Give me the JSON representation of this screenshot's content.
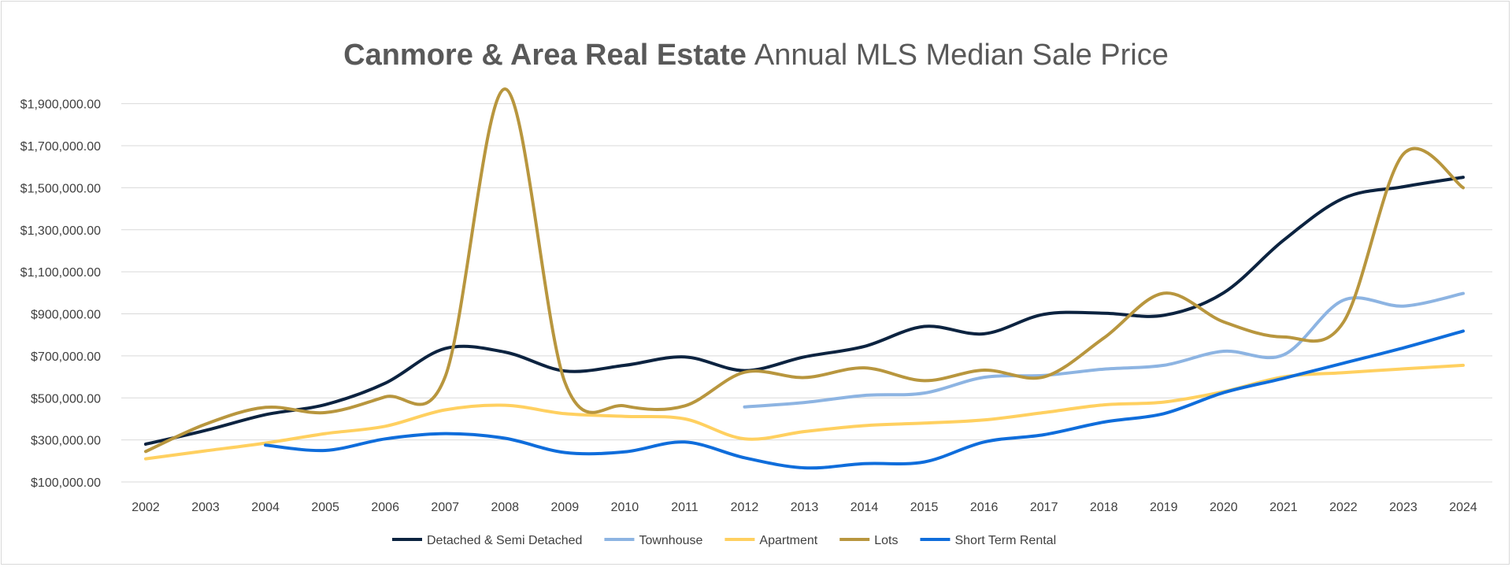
{
  "chart_data": {
    "type": "line",
    "title_bold": "Canmore & Area Real Estate",
    "title_rest": "Annual MLS Median Sale Price",
    "xlabel": "",
    "ylabel": "",
    "ylim": [
      100000,
      2000000
    ],
    "y_ticks": [
      100000,
      300000,
      500000,
      700000,
      900000,
      1100000,
      1300000,
      1500000,
      1700000,
      1900000
    ],
    "y_tick_labels": [
      "$100,000.00",
      "$300,000.00",
      "$500,000.00",
      "$700,000.00",
      "$900,000.00",
      "$1,100,000.00",
      "$1,300,000.00",
      "$1,500,000.00",
      "$1,700,000.00",
      "$1,900,000.00"
    ],
    "grid": true,
    "legend_position": "bottom",
    "x": [
      "2002",
      "2003",
      "2004",
      "2005",
      "2006",
      "2007",
      "2008",
      "2009",
      "2010",
      "2011",
      "2012",
      "2013",
      "2014",
      "2015",
      "2016",
      "2017",
      "2018",
      "2019",
      "2020",
      "2021",
      "2022",
      "2023",
      "2024"
    ],
    "series": [
      {
        "name": "Detached & Semi Detached",
        "color": "#0c2340",
        "values": [
          280000,
          345000,
          420000,
          468000,
          570000,
          735000,
          718000,
          628000,
          655000,
          695000,
          630000,
          695000,
          745000,
          840000,
          805000,
          898000,
          903000,
          893000,
          1000000,
          1250000,
          1450000,
          1505000,
          1550000
        ]
      },
      {
        "name": "Townhouse",
        "color": "#8db4e2",
        "values": [
          null,
          null,
          null,
          null,
          null,
          null,
          null,
          null,
          null,
          null,
          457000,
          478000,
          512000,
          523000,
          598000,
          607000,
          637000,
          655000,
          722000,
          705000,
          965000,
          937000,
          997000
        ]
      },
      {
        "name": "Apartment",
        "color": "#ffd060",
        "values": [
          210000,
          248000,
          285000,
          330000,
          365000,
          443000,
          465000,
          425000,
          412000,
          400000,
          305000,
          340000,
          368000,
          380000,
          395000,
          430000,
          467000,
          480000,
          530000,
          600000,
          620000,
          638000,
          655000
        ]
      },
      {
        "name": "Lots",
        "color": "#b8963e",
        "values": [
          245000,
          375000,
          455000,
          430000,
          505000,
          600000,
          1970000,
          575000,
          462000,
          462000,
          622000,
          597000,
          643000,
          582000,
          632000,
          600000,
          785000,
          998000,
          862000,
          790000,
          860000,
          1660000,
          1500000
        ]
      },
      {
        "name": "Short Term Rental",
        "color": "#0f6ddb",
        "values": [
          null,
          null,
          275000,
          250000,
          305000,
          330000,
          308000,
          240000,
          243000,
          290000,
          215000,
          167000,
          187000,
          195000,
          290000,
          325000,
          385000,
          425000,
          525000,
          593000,
          665000,
          738000,
          818000
        ]
      }
    ]
  }
}
